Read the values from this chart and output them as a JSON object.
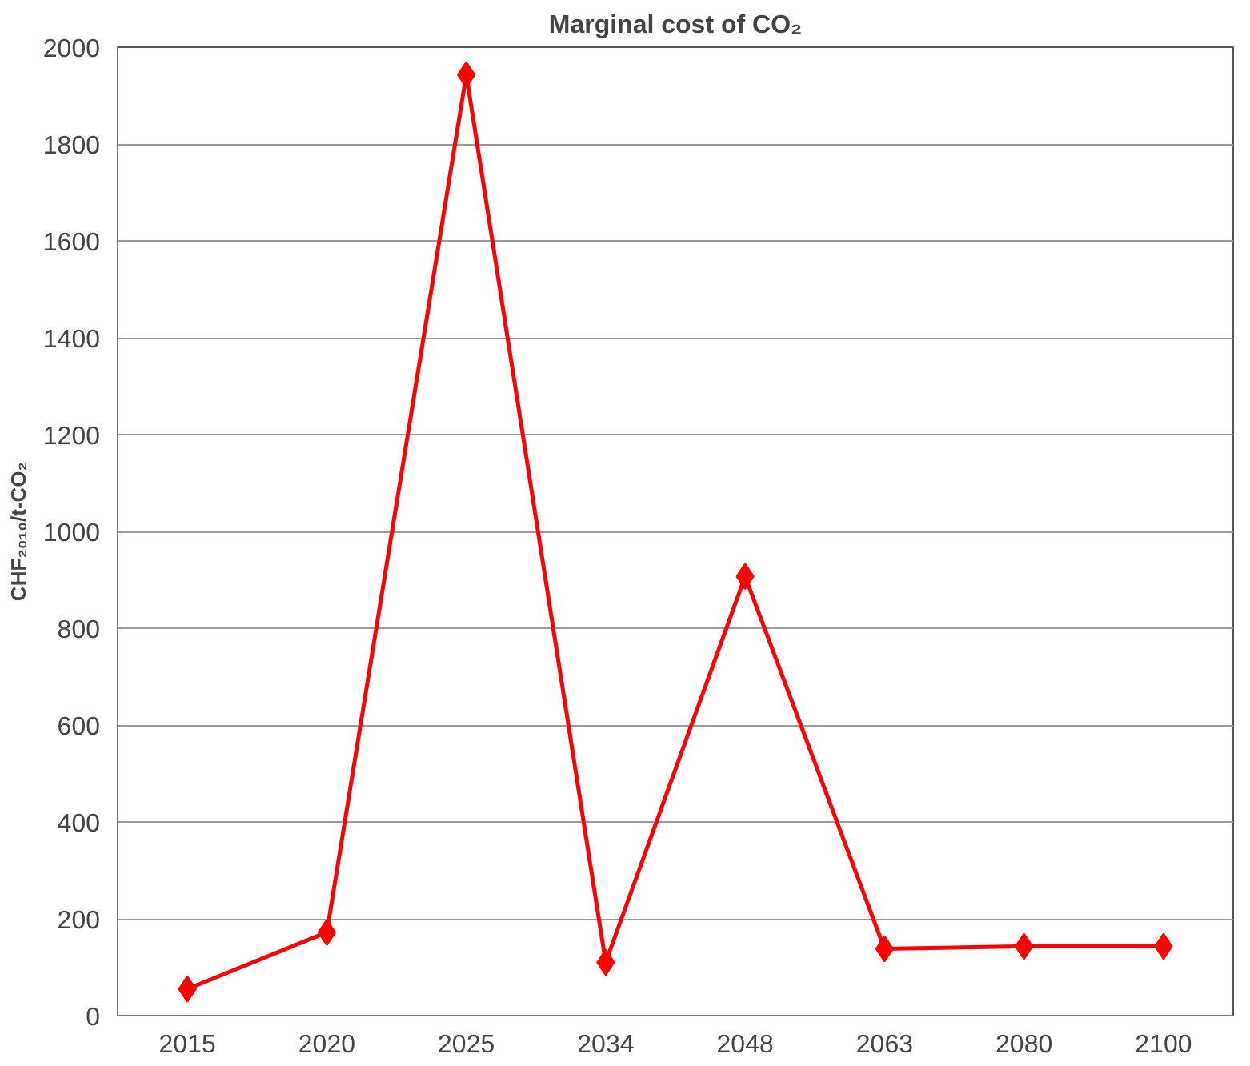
{
  "chart_data": {
    "type": "line",
    "title": "Marginal cost of CO₂",
    "ylabel": "CHF₂₀₁₀/t-CO₂",
    "categories": [
      "2015",
      "2020",
      "2025",
      "2034",
      "2048",
      "2063",
      "2080",
      "2100"
    ],
    "series": [
      {
        "color": "#ff0000",
        "values": [
          55,
          172,
          1943,
          110,
          907,
          138,
          143,
          143
        ]
      }
    ],
    "ylim": [
      0,
      2000
    ],
    "yticks": [
      0,
      200,
      400,
      600,
      800,
      1000,
      1200,
      1400,
      1600,
      1800,
      2000
    ],
    "grid": "y",
    "marker": "diamond",
    "line_style": "solid"
  }
}
